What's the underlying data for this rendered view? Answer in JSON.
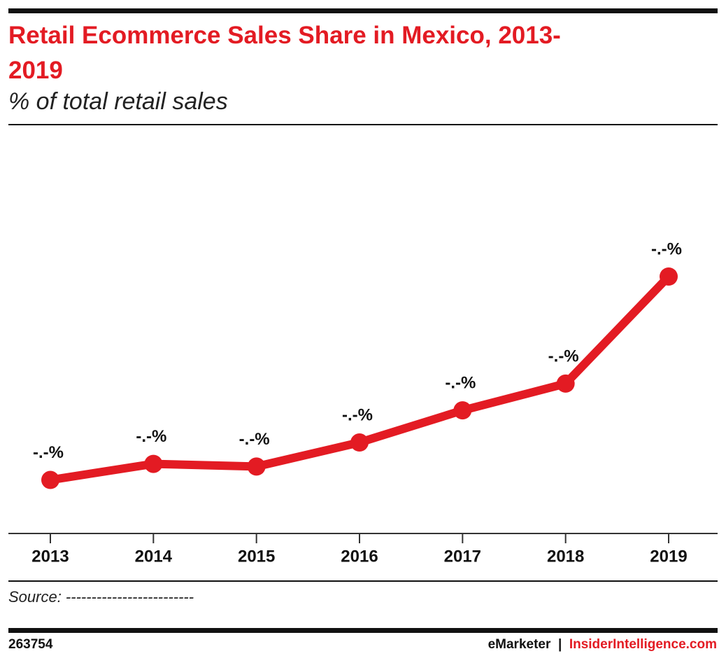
{
  "chart_data": {
    "type": "line",
    "title": "Retail Ecommerce Sales Share in Mexico, 2013-2019",
    "subtitle": "% of total retail sales",
    "categories": [
      "2013",
      "2014",
      "2015",
      "2016",
      "2017",
      "2018",
      "2019"
    ],
    "values": [
      1.0,
      1.3,
      1.25,
      1.7,
      2.3,
      2.8,
      4.8
    ],
    "value_labels": [
      "-.-%",
      "-.-%",
      "-.-%",
      "-.-%",
      "-.-%",
      "-.-%",
      "-.-%"
    ],
    "color": "#e31b23",
    "source": "Source: -------------------------"
  },
  "footer": {
    "id": "263754",
    "brand": "eMarketer",
    "separator": "|",
    "site": "InsiderIntelligence.com"
  }
}
